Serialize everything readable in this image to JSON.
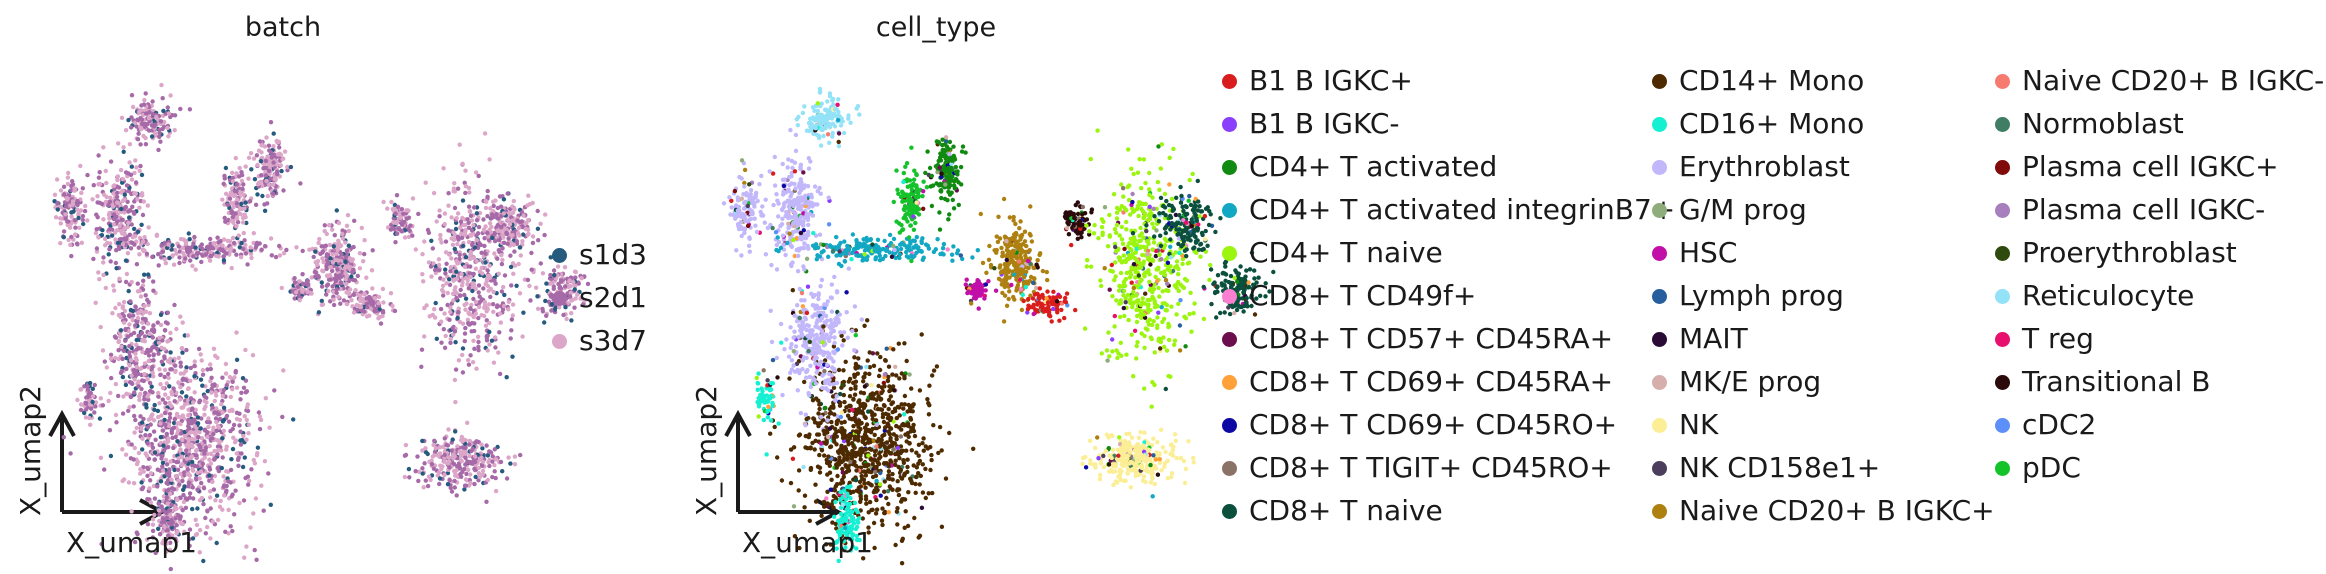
{
  "chart_data": [
    {
      "type": "scatter",
      "title": "batch",
      "xlabel": "X_umap1",
      "ylabel": "X_umap2",
      "legend_position": "right",
      "legend": [
        {
          "name": "s1d3",
          "color": "#265b80"
        },
        {
          "name": "s2d1",
          "color": "#a66aa8"
        },
        {
          "name": "s3d7",
          "color": "#dca6c8"
        }
      ]
    },
    {
      "type": "scatter",
      "title": "cell_type",
      "xlabel": "X_umap1",
      "ylabel": "X_umap2",
      "legend_position": "right",
      "legend": [
        {
          "name": "B1 B IGKC+",
          "color": "#d91c1c"
        },
        {
          "name": "B1 B IGKC-",
          "color": "#8a3ffc"
        },
        {
          "name": "CD4+ T activated",
          "color": "#108a10"
        },
        {
          "name": "CD4+ T activated integrinB7+",
          "color": "#12a8c4"
        },
        {
          "name": "CD4+ T naive",
          "color": "#9cf50f"
        },
        {
          "name": "CD8+ T CD49f+",
          "color": "#fa7fd1"
        },
        {
          "name": "CD8+ T CD57+ CD45RA+",
          "color": "#6b0f4f"
        },
        {
          "name": "CD8+ T CD69+ CD45RA+",
          "color": "#ffa038"
        },
        {
          "name": "CD8+ T CD69+ CD45RO+",
          "color": "#0c0aa3"
        },
        {
          "name": "CD8+ T TIGIT+ CD45RO+",
          "color": "#8a7366"
        },
        {
          "name": "CD8+ T naive",
          "color": "#0b4f3d"
        },
        {
          "name": "CD14+ Mono",
          "color": "#4d2a00"
        },
        {
          "name": "CD16+ Mono",
          "color": "#16f0d2"
        },
        {
          "name": "Erythroblast",
          "color": "#c1b7fa"
        },
        {
          "name": "G/M prog",
          "color": "#8fad7a"
        },
        {
          "name": "HSC",
          "color": "#c20fa8"
        },
        {
          "name": "Lymph prog",
          "color": "#265e9e"
        },
        {
          "name": "MAIT",
          "color": "#2a0b38"
        },
        {
          "name": "MK/E prog",
          "color": "#d6afad"
        },
        {
          "name": "NK",
          "color": "#fbee94"
        },
        {
          "name": "NK CD158e1+",
          "color": "#4b3d5c"
        },
        {
          "name": "Naive CD20+ B IGKC+",
          "color": "#ad8010"
        },
        {
          "name": "Naive CD20+ B IGKC-",
          "color": "#f77a6e"
        },
        {
          "name": "Normoblast",
          "color": "#3f7d64"
        },
        {
          "name": "Plasma cell IGKC+",
          "color": "#800a0a"
        },
        {
          "name": "Plasma cell IGKC-",
          "color": "#a77fbd"
        },
        {
          "name": "Proerythroblast",
          "color": "#2f4a0e"
        },
        {
          "name": "Reticulocyte",
          "color": "#93e2f7"
        },
        {
          "name": "T reg",
          "color": "#e8106e"
        },
        {
          "name": "Transitional B",
          "color": "#2a0a0a"
        },
        {
          "name": "cDC2",
          "color": "#5c8ff7"
        },
        {
          "name": "pDC",
          "color": "#14c22a"
        }
      ]
    }
  ]
}
